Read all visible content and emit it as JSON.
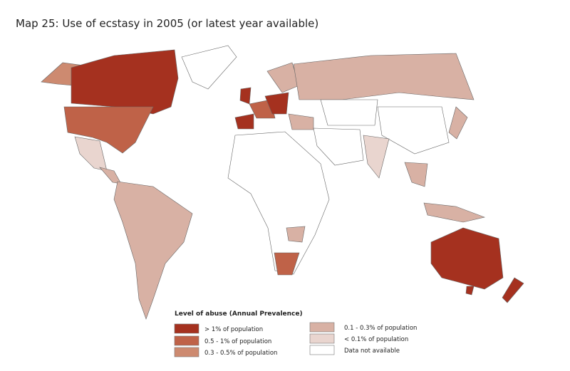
{
  "title": "Map 25: Use of ecstasy in 2005 (or latest year available)",
  "legend": {
    "title": "Level of abuse (Annual  Prevalence)",
    "items": [
      {
        "label": "> 1% of population",
        "color": "#a5311f"
      },
      {
        "label": "0.5 - 1%  of population",
        "color": "#bf6248"
      },
      {
        "label": "0.3 - 0.5% of population",
        "color": "#cd8a70"
      },
      {
        "label": "0.1 - 0.3% of population",
        "color": "#d8b1a4"
      },
      {
        "label": "< 0.1%  of  population",
        "color": "#e9d5cf"
      },
      {
        "label": "Data not available",
        "color": "#ffffff"
      }
    ]
  }
}
